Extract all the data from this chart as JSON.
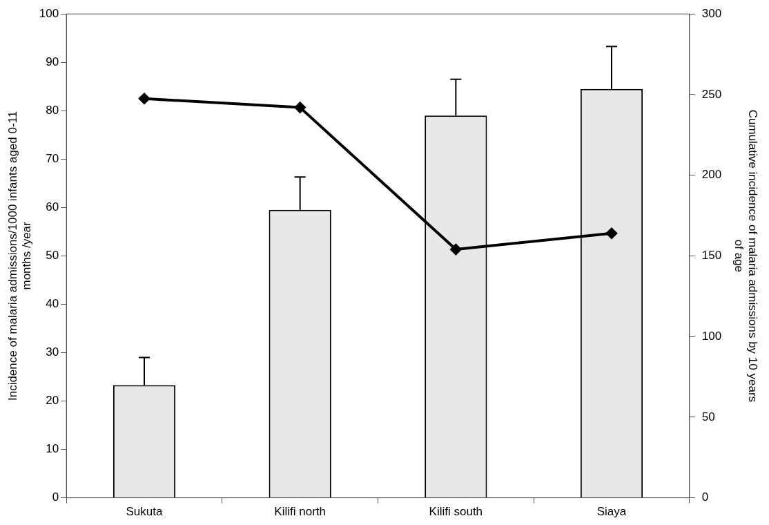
{
  "chart_data": {
    "type": "bar",
    "categories": [
      "Sukuta",
      "Kilifi north",
      "Kilifi south",
      "Siaya"
    ],
    "series": [
      {
        "color": "#e8e8e8",
        "values": [
          23.3,
          59.5,
          79,
          84.5
        ],
        "errors": [
          [
            23.3,
            29
          ],
          [
            59.5,
            66.3
          ],
          [
            79,
            86.5
          ],
          [
            84.5,
            93.3
          ]
        ]
      },
      {
        "type": "line",
        "axis": "y2",
        "color": "#000000",
        "marker": "diamond",
        "line_style": "solid",
        "values": [
          247.5,
          242,
          154,
          164
        ]
      }
    ],
    "ylabel": "Incidence of malaria admissions/1000 infants aged 0-11 months /year",
    "y2label": "Cumulative incidence of malaria admissions by 10 years of age",
    "ylim": [
      0,
      100
    ],
    "yticks": [
      0,
      10,
      20,
      30,
      40,
      50,
      60,
      70,
      80,
      90,
      100
    ],
    "y2lim": [
      0,
      300
    ],
    "y2ticks": [
      0,
      50,
      100,
      150,
      200,
      250,
      300
    ],
    "grid": false,
    "legend": false
  }
}
